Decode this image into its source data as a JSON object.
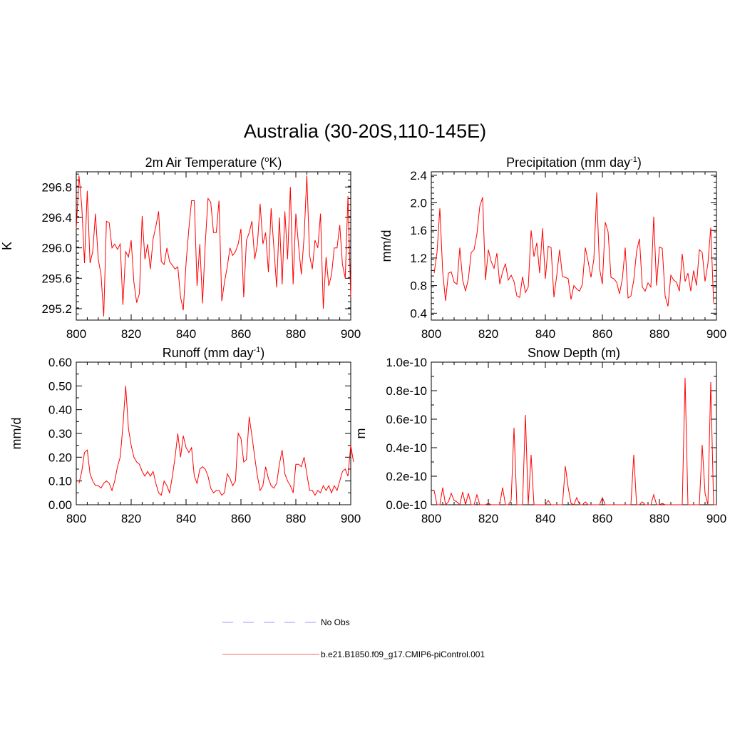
{
  "figure": {
    "title": "Australia (30-20S,110-145E)"
  },
  "legend": {
    "items": [
      {
        "label": "No Obs",
        "color": "#9999ff",
        "dash": true
      },
      {
        "label": "b.e21.B1850.f09_g17.CMIP6-piControl.001",
        "color": "#ff6666",
        "dash": false
      }
    ]
  },
  "chart_data": [
    {
      "type": "line",
      "title": "2m Air Temperature (",
      "title_sup": "o",
      "title_after": "K)",
      "xlabel": "",
      "ylabel": "K",
      "xlim": [
        800,
        900
      ],
      "ylim": [
        295.05,
        297.0
      ],
      "xticks": [
        800,
        820,
        840,
        860,
        880,
        900
      ],
      "yticks": [
        295.2,
        295.6,
        296.0,
        296.4,
        296.8
      ],
      "ytick_labels": [
        "295.2",
        "295.6",
        "296.0",
        "296.4",
        "296.8"
      ],
      "minor_x": 4,
      "minor_y": 4,
      "series": [
        {
          "name": "b.e21.B1850.f09_g17.CMIP6-piControl.001",
          "color": "#ff0000",
          "x_start": 800,
          "values": [
            296.25,
            296.95,
            296.55,
            295.8,
            296.75,
            295.8,
            295.95,
            296.45,
            295.85,
            295.65,
            295.1,
            296.35,
            296.33,
            296.0,
            296.05,
            295.98,
            296.05,
            295.25,
            295.95,
            295.88,
            296.1,
            295.55,
            295.28,
            295.4,
            296.42,
            295.85,
            296.05,
            295.72,
            296.12,
            296.28,
            296.48,
            295.82,
            295.78,
            296.0,
            295.82,
            295.77,
            295.72,
            295.75,
            295.35,
            295.18,
            295.8,
            296.25,
            296.62,
            296.62,
            295.5,
            296.05,
            295.27,
            296.05,
            296.65,
            296.6,
            296.2,
            296.2,
            296.62,
            295.3,
            295.55,
            295.75,
            296.0,
            295.9,
            295.95,
            296.05,
            296.25,
            295.35,
            296.1,
            296.2,
            296.35,
            295.85,
            296.05,
            296.58,
            296.05,
            296.2,
            295.68,
            296.52,
            296.0,
            295.48,
            296.4,
            295.52,
            296.48,
            295.85,
            296.8,
            295.52,
            296.45,
            296.02,
            295.65,
            296.15,
            296.95,
            295.9,
            295.72,
            296.1,
            296.0,
            296.45,
            295.2,
            295.88,
            295.5,
            295.65,
            296.0,
            296.0,
            296.3,
            295.78,
            295.6,
            296.68,
            295.35
          ]
        }
      ]
    },
    {
      "type": "line",
      "title": "Precipitation (mm day",
      "title_sup": "-1",
      "title_after": ")",
      "xlabel": "",
      "ylabel": "mm/d",
      "xlim": [
        800,
        900
      ],
      "ylim": [
        0.3,
        2.45
      ],
      "xticks": [
        800,
        820,
        840,
        860,
        880,
        900
      ],
      "yticks": [
        0.4,
        0.8,
        1.2,
        1.6,
        2.0,
        2.4
      ],
      "ytick_labels": [
        "0.4",
        "0.8",
        "1.2",
        "1.6",
        "2.0",
        "2.4"
      ],
      "minor_x": 4,
      "minor_y": 4,
      "series": [
        {
          "name": "b.e21.B1850.f09_g17.CMIP6-piControl.001",
          "color": "#ff0000",
          "x_start": 801,
          "values": [
            0.98,
            1.28,
            1.92,
            1.0,
            0.58,
            0.98,
            1.0,
            0.85,
            0.82,
            1.35,
            0.88,
            0.72,
            0.9,
            1.28,
            1.32,
            1.55,
            1.95,
            2.08,
            0.88,
            1.32,
            1.15,
            1.05,
            1.27,
            0.82,
            1.0,
            1.12,
            0.88,
            0.95,
            0.86,
            0.65,
            0.63,
            0.93,
            0.7,
            0.78,
            1.6,
            1.22,
            1.42,
            0.98,
            1.63,
            0.9,
            1.37,
            1.35,
            0.63,
            0.95,
            1.32,
            0.93,
            0.92,
            0.9,
            0.6,
            0.8,
            0.75,
            0.72,
            0.82,
            1.35,
            1.15,
            0.92,
            1.18,
            2.15,
            1.05,
            0.82,
            1.72,
            1.58,
            0.92,
            0.9,
            0.85,
            0.68,
            0.9,
            1.35,
            0.62,
            0.65,
            0.88,
            1.3,
            1.48,
            0.78,
            0.72,
            0.84,
            0.78,
            1.8,
            0.8,
            1.36,
            1.34,
            0.65,
            0.5,
            0.95,
            0.88,
            0.85,
            0.72,
            1.26,
            0.86,
            0.98,
            0.72,
            1.02,
            0.8,
            1.32,
            1.28,
            0.86,
            1.12,
            1.64,
            0.55
          ]
        }
      ]
    },
    {
      "type": "line",
      "title": "Runoff (mm day",
      "title_sup": "-1",
      "title_after": ")",
      "xlabel": "",
      "ylabel": "mm/d",
      "xlim": [
        800,
        900
      ],
      "ylim": [
        0.0,
        0.6
      ],
      "xticks": [
        800,
        820,
        840,
        860,
        880,
        900
      ],
      "yticks": [
        0.0,
        0.1,
        0.2,
        0.3,
        0.4,
        0.5,
        0.6
      ],
      "ytick_labels": [
        "0.00",
        "0.10",
        "0.20",
        "0.30",
        "0.40",
        "0.50",
        "0.60"
      ],
      "minor_x": 4,
      "minor_y": 1,
      "series": [
        {
          "name": "b.e21.B1850.f09_g17.CMIP6-piControl.001",
          "color": "#ff0000",
          "x_start": 801,
          "values": [
            0.09,
            0.14,
            0.22,
            0.23,
            0.13,
            0.1,
            0.08,
            0.08,
            0.07,
            0.09,
            0.1,
            0.09,
            0.06,
            0.1,
            0.16,
            0.2,
            0.33,
            0.5,
            0.32,
            0.25,
            0.2,
            0.18,
            0.17,
            0.14,
            0.12,
            0.14,
            0.12,
            0.14,
            0.09,
            0.05,
            0.04,
            0.1,
            0.08,
            0.05,
            0.12,
            0.2,
            0.3,
            0.2,
            0.29,
            0.24,
            0.22,
            0.24,
            0.12,
            0.09,
            0.15,
            0.16,
            0.15,
            0.12,
            0.07,
            0.05,
            0.06,
            0.06,
            0.04,
            0.05,
            0.13,
            0.11,
            0.08,
            0.1,
            0.3,
            0.28,
            0.18,
            0.19,
            0.37,
            0.29,
            0.2,
            0.12,
            0.06,
            0.08,
            0.16,
            0.11,
            0.08,
            0.07,
            0.09,
            0.17,
            0.23,
            0.13,
            0.1,
            0.08,
            0.05,
            0.17,
            0.17,
            0.16,
            0.2,
            0.13,
            0.06,
            0.06,
            0.04,
            0.06,
            0.05,
            0.08,
            0.06,
            0.08,
            0.05,
            0.08,
            0.06,
            0.1,
            0.14,
            0.15,
            0.12,
            0.25,
            0.18
          ]
        }
      ]
    },
    {
      "type": "line",
      "title": "Snow Depth (m)",
      "title_sup": "",
      "title_after": "",
      "xlabel": "",
      "ylabel": "m",
      "xlim": [
        800,
        900
      ],
      "ylim": [
        0.0,
        1e-10
      ],
      "xticks": [
        800,
        820,
        840,
        860,
        880,
        900
      ],
      "yticks": [
        0.0,
        2e-11,
        4e-11,
        6e-11,
        8e-11,
        1e-10
      ],
      "ytick_labels": [
        "0.0e-10",
        "0.2e-10",
        "0.4e-10",
        "0.6e-10",
        "0.8e-10",
        "1.0e-10"
      ],
      "minor_x": 4,
      "minor_y": 1,
      "series": [
        {
          "name": "b.e21.B1850.f09_g17.CMIP6-piControl.001",
          "color": "#ff0000",
          "x_start": 801,
          "values": [
            1e-11,
            0.0,
            0.0,
            1.2e-11,
            0.0,
            2e-12,
            8e-12,
            3e-12,
            2e-12,
            0.0,
            9e-12,
            0.0,
            8e-12,
            0.0,
            0.0,
            7e-12,
            0.0,
            0.0,
            0.0,
            1e-12,
            0.0,
            0.0,
            0.0,
            0.0,
            1.2e-11,
            0.0,
            0.0,
            3e-12,
            5.4e-11,
            0.0,
            0.0,
            0.0,
            6.3e-11,
            0.0,
            3.5e-11,
            0.0,
            0.0,
            0.0,
            0.0,
            0.0,
            3e-12,
            0.0,
            0.0,
            0.0,
            0.0,
            0.0,
            2.7e-11,
            1.2e-11,
            1e-12,
            0.0,
            5e-12,
            0.0,
            0.0,
            2e-12,
            0.0,
            0.0,
            0.0,
            0.0,
            0.0,
            5e-12,
            0.0,
            0.0,
            0.0,
            0.0,
            0.0,
            0.0,
            0.0,
            0.0,
            0.0,
            0.0,
            3.5e-11,
            0.0,
            0.0,
            2e-12,
            0.0,
            0.0,
            0.0,
            7e-12,
            0.0,
            0.0,
            1e-12,
            0.0,
            0.0,
            0.0,
            0.0,
            0.0,
            0.0,
            0.0,
            8.9e-11,
            0.0,
            0.0,
            0.0,
            0.0,
            0.0,
            4.2e-11,
            8e-12,
            0.0,
            8.6e-11,
            0.0,
            0.0
          ]
        }
      ]
    }
  ]
}
